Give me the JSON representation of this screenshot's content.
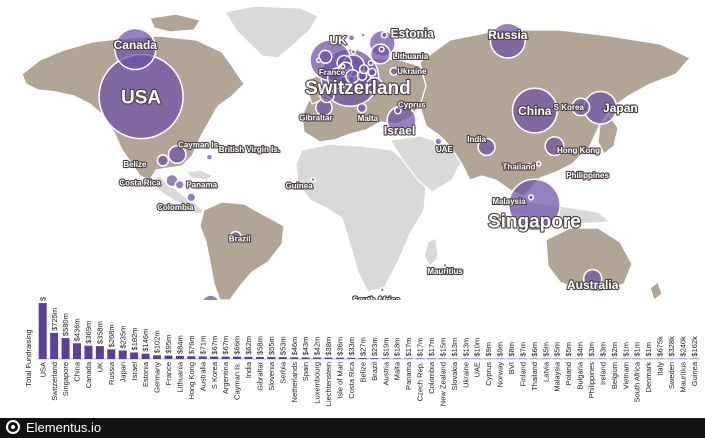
{
  "brand": {
    "name": "Elementus.io"
  },
  "colors": {
    "land": "#b3a595",
    "land_gray": "#d9d9d9",
    "bubble": "#6e51a8",
    "bar": "#5b3f99",
    "footer": "#111111"
  },
  "chart_data": [
    {
      "type": "bubble-map",
      "measure": "Total Fundraising",
      "bubbles": [
        {
          "country": "USA",
          "value_musd": 1553,
          "lon": -100,
          "lat": 40,
          "label_size": "large"
        },
        {
          "country": "Canada",
          "value_musd": 369,
          "lon": -103,
          "lat": 57,
          "label_size": "medium"
        },
        {
          "country": "Switzerland",
          "value_musd": 725,
          "lon": 8.2,
          "lat": 46.8,
          "label_size": "large"
        },
        {
          "country": "UK",
          "value_musd": 358,
          "lon": -2,
          "lat": 53,
          "label_size": "medium"
        },
        {
          "country": "Russia",
          "value_musd": 268,
          "lon": 90,
          "lat": 60,
          "label_size": "medium"
        },
        {
          "country": "China",
          "value_musd": 436,
          "lon": 104,
          "lat": 35,
          "label_size": "medium"
        },
        {
          "country": "Singapore",
          "value_musd": 580,
          "lon": 103.8,
          "lat": 1.3,
          "label_size": "large"
        },
        {
          "country": "Japan",
          "value_musd": 235,
          "lon": 138,
          "lat": 36,
          "label_size": "medium"
        },
        {
          "country": "Israel",
          "value_musd": 182,
          "lon": 35,
          "lat": 31.5,
          "label_size": "medium"
        },
        {
          "country": "Estonia",
          "value_musd": 146,
          "lon": 25,
          "lat": 59,
          "label_size": "medium"
        },
        {
          "country": "Germany",
          "value_musd": 102,
          "lon": 10,
          "lat": 51,
          "label_size": "none"
        },
        {
          "country": "France",
          "value_musd": 95,
          "lon": 2,
          "lat": 46.5,
          "label_size": "small"
        },
        {
          "country": "Lithuania",
          "value_musd": 84,
          "lon": 24,
          "lat": 55.2,
          "label_size": "small"
        },
        {
          "country": "Hong Kong",
          "value_musd": 76,
          "lon": 114.2,
          "lat": 22.3,
          "label_size": "small"
        },
        {
          "country": "Australia",
          "value_musd": 71,
          "lon": 134,
          "lat": -25,
          "label_size": "medium"
        },
        {
          "country": "S Korea",
          "value_musd": 67,
          "lon": 127.8,
          "lat": 36.3,
          "label_size": "small"
        },
        {
          "country": "Argentina",
          "value_musd": 67,
          "lon": -64,
          "lat": -34,
          "label_size": "small"
        },
        {
          "country": "Cayman Is.",
          "value_musd": 66,
          "lon": -81.3,
          "lat": 19.3,
          "label_size": "small"
        },
        {
          "country": "India",
          "value_musd": 62,
          "lon": 79,
          "lat": 22,
          "label_size": "small"
        },
        {
          "country": "Gibraltar",
          "value_musd": 58,
          "lon": -5.3,
          "lat": 36.1,
          "label_size": "small"
        },
        {
          "country": "Slovenia",
          "value_musd": 55,
          "lon": 14.9,
          "lat": 46.1,
          "label_size": "none"
        },
        {
          "country": "Serbia",
          "value_musd": 53,
          "lon": 20.9,
          "lat": 44.0,
          "label_size": "none"
        },
        {
          "country": "Netherlands",
          "value_musd": 46,
          "lon": 5.3,
          "lat": 52.1,
          "label_size": "none"
        },
        {
          "country": "Spain",
          "value_musd": 43,
          "lon": -3.7,
          "lat": 40.4,
          "label_size": "none"
        },
        {
          "country": "Luxembourg",
          "value_musd": 42,
          "lon": 6.1,
          "lat": 49.8,
          "label_size": "none"
        },
        {
          "country": "Liechtenstein",
          "value_musd": 38,
          "lon": 9.55,
          "lat": 47.2,
          "label_size": "none"
        },
        {
          "country": "Isle of Man",
          "value_musd": 36,
          "lon": -4.5,
          "lat": 54.2,
          "label_size": "none"
        },
        {
          "country": "Costa Rica",
          "value_musd": 33,
          "lon": -84,
          "lat": 10,
          "label_size": "small"
        },
        {
          "country": "Belize",
          "value_musd": 27,
          "lon": -88.7,
          "lat": 17.2,
          "label_size": "small"
        },
        {
          "country": "Brazil",
          "value_musd": 23,
          "lon": -51,
          "lat": -10,
          "label_size": "small"
        },
        {
          "country": "Austria",
          "value_musd": 19,
          "lon": 14.5,
          "lat": 47.5,
          "label_size": "none"
        },
        {
          "country": "Malta",
          "value_musd": 18,
          "lon": 14.4,
          "lat": 35.9,
          "label_size": "small"
        },
        {
          "country": "Panama",
          "value_musd": 17,
          "lon": -80,
          "lat": 8.5,
          "label_size": "small"
        },
        {
          "country": "Czech Rep.",
          "value_musd": 17,
          "lon": 15.5,
          "lat": 49.8,
          "label_size": "none"
        },
        {
          "country": "Colombia",
          "value_musd": 17,
          "lon": -74,
          "lat": 4,
          "label_size": "small"
        },
        {
          "country": "New Zealand",
          "value_musd": 15,
          "lon": 172,
          "lat": -41,
          "label_size": "small"
        },
        {
          "country": "Slovakia",
          "value_musd": 13,
          "lon": 19.7,
          "lat": 48.7,
          "label_size": "none"
        },
        {
          "country": "Ukraine",
          "value_musd": 13,
          "lon": 31,
          "lat": 49,
          "label_size": "small"
        },
        {
          "country": "UAE",
          "value_musd": 10,
          "lon": 54,
          "lat": 24,
          "label_size": "small"
        },
        {
          "country": "Cyprus",
          "value_musd": 9,
          "lon": 33,
          "lat": 35,
          "label_size": "small"
        },
        {
          "country": "Norway",
          "value_musd": 9,
          "lon": 9,
          "lat": 61,
          "label_size": "none"
        },
        {
          "country": "BVI",
          "value_musd": 8,
          "lon": -64.6,
          "lat": 18.4,
          "label_size": "none"
        },
        {
          "country": "Finland",
          "value_musd": 7,
          "lon": 26,
          "lat": 62,
          "label_size": "none"
        },
        {
          "country": "Thailand",
          "value_musd": 6,
          "lon": 101,
          "lat": 15,
          "label_size": "small"
        },
        {
          "country": "Latvia",
          "value_musd": 5,
          "lon": 24.6,
          "lat": 56.9,
          "label_size": "none"
        },
        {
          "country": "Malaysia",
          "value_musd": 5,
          "lon": 102,
          "lat": 4,
          "label_size": "small"
        },
        {
          "country": "Poland",
          "value_musd": 5,
          "lon": 19,
          "lat": 52,
          "label_size": "none"
        },
        {
          "country": "Bulgaria",
          "value_musd": 4,
          "lon": 25,
          "lat": 42.7,
          "label_size": "none"
        },
        {
          "country": "Philippines",
          "value_musd": 3,
          "lon": 122,
          "lat": 12,
          "label_size": "small"
        },
        {
          "country": "Ireland",
          "value_musd": 3,
          "lon": -8,
          "lat": 53,
          "label_size": "none"
        },
        {
          "country": "Belgium",
          "value_musd": 2,
          "lon": 4.5,
          "lat": 50.8,
          "label_size": "none"
        },
        {
          "country": "Vietnam",
          "value_musd": 1,
          "lon": 106,
          "lat": 16,
          "label_size": "none"
        },
        {
          "country": "South Africa",
          "value_musd": 1,
          "lon": 25,
          "lat": -29,
          "label_size": "small"
        },
        {
          "country": "Denmark",
          "value_musd": 1,
          "lon": 10,
          "lat": 56,
          "label_size": "none"
        },
        {
          "country": "Italy",
          "value_musd": 0.675,
          "lon": 12.5,
          "lat": 42.8,
          "label_size": "none"
        },
        {
          "country": "Sweden",
          "value_musd": 0.328,
          "lon": 15,
          "lat": 62,
          "label_size": "none"
        },
        {
          "country": "Mauritius",
          "value_musd": 0.24,
          "lon": 57.5,
          "lat": -20.3,
          "label_size": "small"
        },
        {
          "country": "Guinea",
          "value_musd": 0.162,
          "lon": -10.9,
          "lat": 10.4,
          "label_size": "small"
        }
      ],
      "extra_labels": [
        {
          "text": "British Virgin Is.",
          "lon": -64.6,
          "lat": 18.4,
          "label_size": "small"
        }
      ]
    },
    {
      "type": "bar",
      "ylabel": "Total Fundraising",
      "categories": [
        "USA",
        "Switzerland",
        "Singapore",
        "China",
        "Canada",
        "UK",
        "Russia",
        "Japan",
        "Israel",
        "Estonia",
        "Germany",
        "France",
        "Lithuania",
        "Hong Kong",
        "Australia",
        "S Korea",
        "Argentina",
        "Cayman Is.",
        "India",
        "Gibraltar",
        "Slovenia",
        "Serbia",
        "Netherlands",
        "Spain",
        "Luxembourg",
        "Liechtenstein",
        "Isle of Man",
        "Costa Rica",
        "Belize",
        "Brazil",
        "Austria",
        "Malta",
        "Panama",
        "Czech Rep.",
        "Colombia",
        "New Zealand",
        "Slovakia",
        "Ukraine",
        "UAE",
        "Cyprus",
        "Norway",
        "BVI",
        "Finland",
        "Thailand",
        "Latvia",
        "Malaysia",
        "Poland",
        "Bulgaria",
        "Philippines",
        "Ireland",
        "Belgium",
        "Vietnam",
        "South Africa",
        "Denmark",
        "Italy",
        "Sweden",
        "Mauritius",
        "Guinea"
      ],
      "values": [
        1553,
        725,
        580,
        436,
        369,
        358,
        268,
        235,
        182,
        146,
        102,
        95,
        84,
        76,
        71,
        67,
        67,
        66,
        62,
        58,
        55,
        53,
        46,
        43,
        42,
        38,
        36,
        33,
        27,
        23,
        19,
        18,
        17,
        17,
        17,
        15,
        13,
        13,
        10,
        9,
        9,
        8,
        7,
        6,
        5,
        5,
        5,
        4,
        3,
        3,
        2,
        1,
        1,
        1,
        0.675,
        0.328,
        0.24,
        0.162
      ],
      "value_labels": [
        "$1,553m",
        "$725m",
        "$580m",
        "$436m",
        "$369m",
        "$358m",
        "$268m",
        "$235m",
        "$182m",
        "$146m",
        "$102m",
        "$95m",
        "$84m",
        "$76m",
        "$71m",
        "$67m",
        "$67m",
        "$66m",
        "$62m",
        "$58m",
        "$55m",
        "$53m",
        "$46m",
        "$43m",
        "$42m",
        "$38m",
        "$36m",
        "$33m",
        "$27m",
        "$23m",
        "$19m",
        "$18m",
        "$17m",
        "$17m",
        "$17m",
        "$15m",
        "$13m",
        "$13m",
        "$10m",
        "$9m",
        "$9m",
        "$8m",
        "$7m",
        "$6m",
        "$5m",
        "$5m",
        "$5m",
        "$4m",
        "$3m",
        "$3m",
        "$2m",
        "$1m",
        "$1m",
        "$1m",
        "$675k",
        "$328k",
        "$240k",
        "$162k"
      ],
      "ylim": [
        0,
        1553
      ]
    }
  ]
}
